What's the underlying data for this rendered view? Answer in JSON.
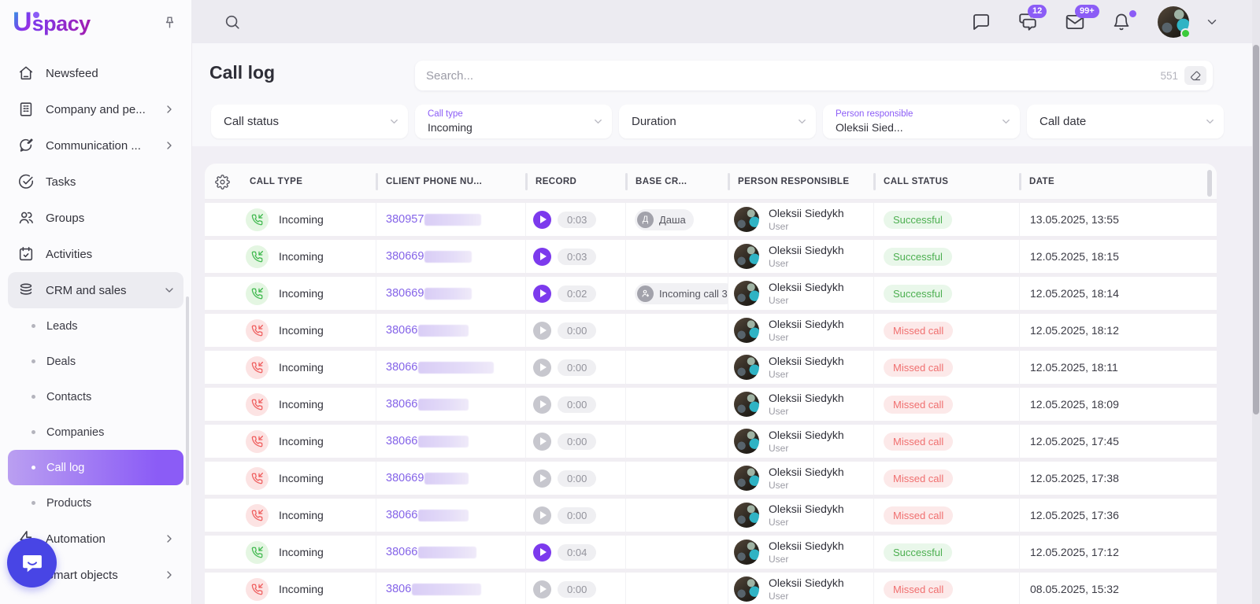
{
  "brand": {
    "logo_u": "U",
    "logo_rest": "spacy"
  },
  "topbar": {
    "chats_badge": "12",
    "mail_badge": "99+",
    "icons": [
      "comment-icon",
      "chats-icon",
      "mail-icon",
      "bell-icon",
      "avatar",
      "chevron-down-icon"
    ]
  },
  "sidebar": {
    "items": [
      {
        "label": "Newsfeed",
        "icon": "home-icon"
      },
      {
        "label": "Company and pe...",
        "icon": "building-icon",
        "chevron": true
      },
      {
        "label": "Communication ...",
        "icon": "chat-pen-icon",
        "chevron": true
      },
      {
        "label": "Tasks",
        "icon": "check-circle-icon"
      },
      {
        "label": "Groups",
        "icon": "users-icon"
      },
      {
        "label": "Activities",
        "icon": "calendar-icon"
      },
      {
        "label": "CRM and sales",
        "icon": "stack-icon",
        "expanded": true
      },
      {
        "label": "Automation",
        "icon": "lightning-icon",
        "chevron": true
      },
      {
        "label": "Smart objects",
        "icon": "cube-icon",
        "chevron": true
      }
    ],
    "crm_subitems": [
      {
        "label": "Leads"
      },
      {
        "label": "Deals"
      },
      {
        "label": "Contacts"
      },
      {
        "label": "Companies"
      },
      {
        "label": "Call log",
        "active": true
      },
      {
        "label": "Products"
      }
    ]
  },
  "page": {
    "title": "Call log",
    "search_placeholder": "Search...",
    "search_count": "551"
  },
  "filters": [
    {
      "label": "Call status",
      "value": ""
    },
    {
      "label": "Call type",
      "value": "Incoming"
    },
    {
      "label": "Duration",
      "value": ""
    },
    {
      "label": "Person responsible",
      "value": "Oleksii Sied..."
    },
    {
      "label": "Call date",
      "value": ""
    }
  ],
  "table": {
    "columns": [
      "CALL TYPE",
      "CLIENT PHONE NU...",
      "RECORD",
      "BASE CR...",
      "PERSON RESPONSIBLE",
      "CALL STATUS",
      "DATE"
    ],
    "rows": [
      {
        "type": "Incoming",
        "missed": false,
        "phone": "380957",
        "duration": "0:03",
        "base": {
          "kind": "person",
          "initial": "Д",
          "label": "Даша"
        },
        "person": "Oleksii Siedykh",
        "role": "User",
        "status": "Successful",
        "date": "13.05.2025, 13:55"
      },
      {
        "type": "Incoming",
        "missed": false,
        "phone": "380669",
        "duration": "0:03",
        "base": null,
        "person": "Oleksii Siedykh",
        "role": "User",
        "status": "Successful",
        "date": "12.05.2025, 18:15"
      },
      {
        "type": "Incoming",
        "missed": false,
        "phone": "380669",
        "duration": "0:02",
        "base": {
          "kind": "contact",
          "label": "Incoming call 3"
        },
        "person": "Oleksii Siedykh",
        "role": "User",
        "status": "Successful",
        "date": "12.05.2025, 18:14"
      },
      {
        "type": "Incoming",
        "missed": true,
        "phone": "38066",
        "duration": "0:00",
        "base": null,
        "person": "Oleksii Siedykh",
        "role": "User",
        "status": "Missed call",
        "date": "12.05.2025, 18:12"
      },
      {
        "type": "Incoming",
        "missed": true,
        "phone": "38066",
        "duration": "0:00",
        "base": null,
        "person": "Oleksii Siedykh",
        "role": "User",
        "status": "Missed call",
        "date": "12.05.2025, 18:11"
      },
      {
        "type": "Incoming",
        "missed": true,
        "phone": "38066",
        "duration": "0:00",
        "base": null,
        "person": "Oleksii Siedykh",
        "role": "User",
        "status": "Missed call",
        "date": "12.05.2025, 18:09"
      },
      {
        "type": "Incoming",
        "missed": true,
        "phone": "38066",
        "duration": "0:00",
        "base": null,
        "person": "Oleksii Siedykh",
        "role": "User",
        "status": "Missed call",
        "date": "12.05.2025, 17:45"
      },
      {
        "type": "Incoming",
        "missed": true,
        "phone": "380669",
        "duration": "0:00",
        "base": null,
        "person": "Oleksii Siedykh",
        "role": "User",
        "status": "Missed call",
        "date": "12.05.2025, 17:38"
      },
      {
        "type": "Incoming",
        "missed": true,
        "phone": "38066",
        "duration": "0:00",
        "base": null,
        "person": "Oleksii Siedykh",
        "role": "User",
        "status": "Missed call",
        "date": "12.05.2025, 17:36"
      },
      {
        "type": "Incoming",
        "missed": false,
        "phone": "38066",
        "duration": "0:04",
        "base": null,
        "person": "Oleksii Siedykh",
        "role": "User",
        "status": "Successful",
        "date": "12.05.2025, 17:12"
      },
      {
        "type": "Incoming",
        "missed": true,
        "phone": "3806",
        "duration": "0:00",
        "base": null,
        "person": "Oleksii Siedykh",
        "role": "User",
        "status": "Missed call",
        "date": "08.05.2025, 15:32"
      }
    ]
  },
  "colors": {
    "accent": "#8B5CF6",
    "success": "#4CAF50",
    "danger": "#F07070",
    "call_answered": "#3DB84C",
    "call_missed": "#EF5B5B"
  }
}
